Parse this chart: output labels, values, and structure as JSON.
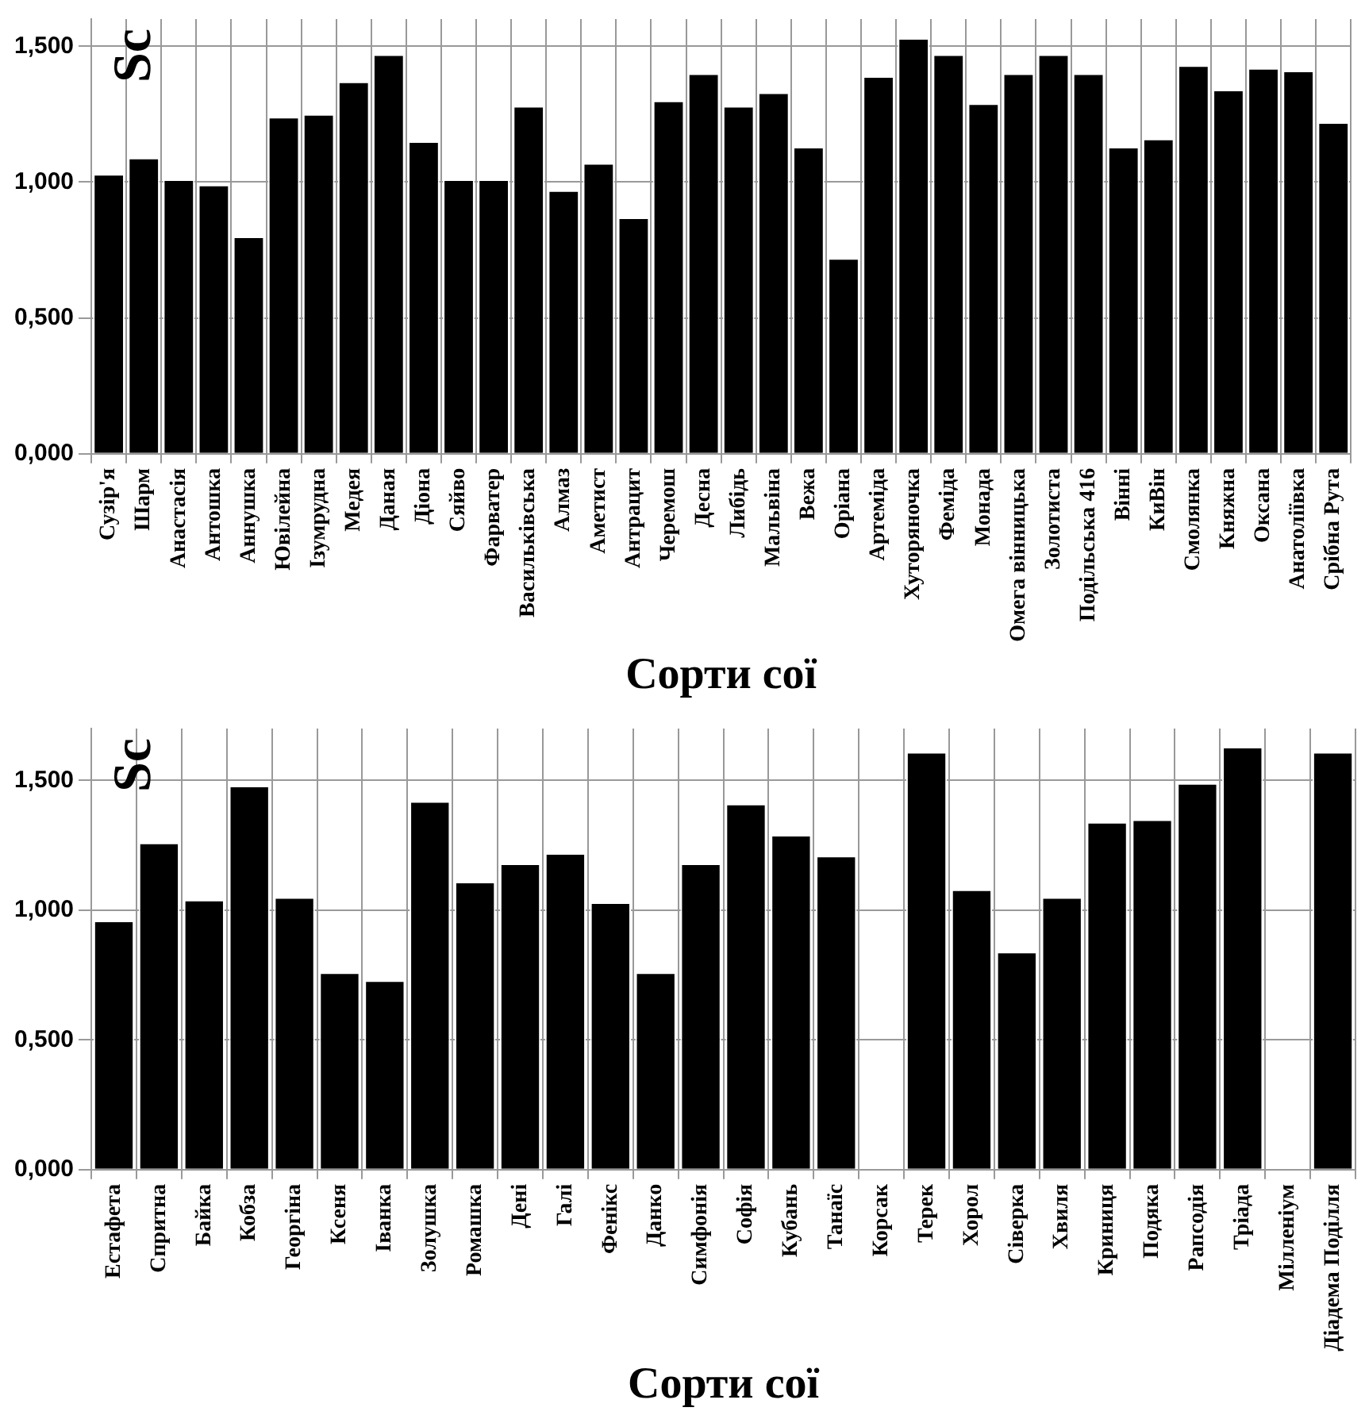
{
  "chart_data": [
    {
      "type": "bar",
      "ylabel": "Sc",
      "xlabel": "Сорти сої",
      "color": "#000000",
      "grid": true,
      "categories": [
        "Сузір'я",
        "Шарм",
        "Анастасія",
        "Антошка",
        "Аннушка",
        "Ювілейна",
        "Ізумрудна",
        "Медея",
        "Даная",
        "Діона",
        "Сяйво",
        "Фарватер",
        "Васильківська",
        "Алмаз",
        "Аметист",
        "Антрацит",
        "Черемош",
        "Десна",
        "Либідь",
        "Мальвіна",
        "Вежа",
        "Оріана",
        "Артеміда",
        "Хуторяночка",
        "Феміда",
        "Монада",
        "Омега вінницька",
        "Золотиста",
        "Подільська 416",
        "Вінні",
        "КиВін",
        "Смолянка",
        "Княжна",
        "Оксана",
        "Анатоліївка",
        "Срібна Рута"
      ],
      "values": [
        1.03,
        1.09,
        1.01,
        0.99,
        0.8,
        1.24,
        1.25,
        1.37,
        1.47,
        1.15,
        1.01,
        1.01,
        1.28,
        0.97,
        1.07,
        0.87,
        1.3,
        1.4,
        1.28,
        1.33,
        1.13,
        0.72,
        1.39,
        1.53,
        1.47,
        1.29,
        1.4,
        1.47,
        1.4,
        1.13,
        1.16,
        1.43,
        1.34,
        1.42,
        1.41,
        1.22
      ],
      "ylim": [
        0,
        1.6
      ],
      "yticks": [
        {
          "value": 0,
          "label": "0,000"
        },
        {
          "value": 0.5,
          "label": "0,500"
        },
        {
          "value": 1,
          "label": "1,000"
        },
        {
          "value": 1.5,
          "label": "1,500"
        }
      ]
    },
    {
      "type": "bar",
      "ylabel": "Sc",
      "xlabel": "Сорти сої",
      "color": "#000000",
      "grid": true,
      "categories": [
        "Естафета",
        "Спритна",
        "Байка",
        "Кобза",
        "Георгіна",
        "Ксеня",
        "Іванка",
        "Золушка",
        "Ромашка",
        "Дені",
        "Галі",
        "Фенікс",
        "Данко",
        "Симфонія",
        "Софія",
        "Кубань",
        "Танаїс",
        "Корсак",
        "Терек",
        "Хорол",
        "Сіверка",
        "Хвиля",
        "Криниця",
        "Подяка",
        "Рапсодія",
        "Тріада",
        "Мілленіум",
        "Діадема Поділля"
      ],
      "values": [
        0.96,
        1.26,
        1.04,
        1.48,
        1.05,
        0.76,
        0.73,
        1.42,
        1.11,
        1.18,
        1.22,
        1.03,
        0.76,
        1.18,
        1.41,
        1.29,
        1.21,
        null,
        1.61,
        1.08,
        0.84,
        1.05,
        1.34,
        1.35,
        1.49,
        1.63,
        null,
        1.61
      ],
      "ylim": [
        0,
        1.7
      ],
      "yticks": [
        {
          "value": 0,
          "label": "0,000"
        },
        {
          "value": 0.5,
          "label": "0,500"
        },
        {
          "value": 1,
          "label": "1,000"
        },
        {
          "value": 1.5,
          "label": "1,500"
        }
      ]
    }
  ]
}
